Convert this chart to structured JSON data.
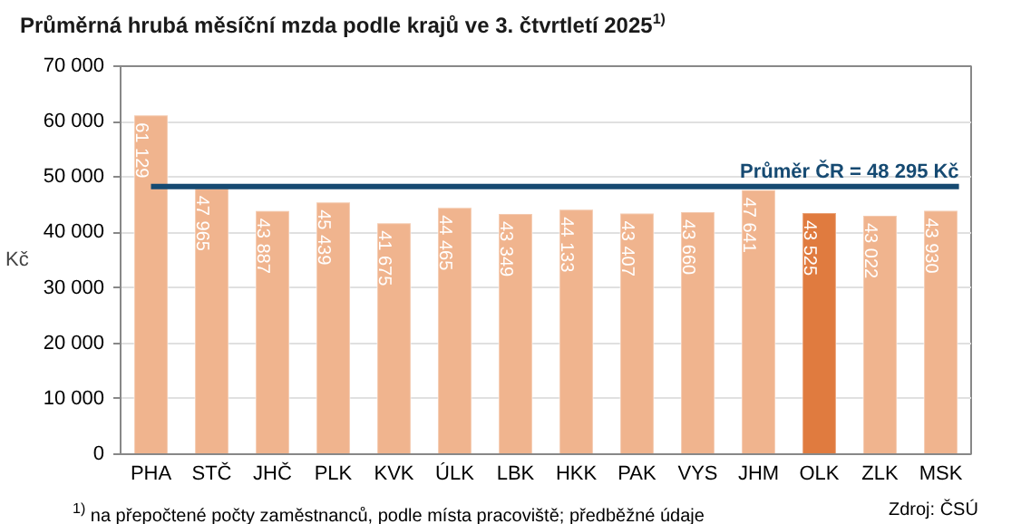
{
  "chart_data": {
    "type": "bar",
    "title": "Průměrná hrubá měsíční mzda podle krajů ve 3. čtvrtletí 2025$^{1)}$",
    "ylabel": "Kč",
    "categories": [
      "PHA",
      "STČ",
      "JHČ",
      "PLK",
      "KVK",
      "ÚLK",
      "LBK",
      "HKK",
      "PAK",
      "VYS",
      "JHM",
      "OLK",
      "ZLK",
      "MSK"
    ],
    "values": [
      61129,
      47965,
      43887,
      45439,
      41675,
      44465,
      43349,
      44133,
      43407,
      43660,
      47641,
      43525,
      43022,
      43930
    ],
    "value_labels": [
      "61 129",
      "47 965",
      "43 887",
      "45 439",
      "41 675",
      "44 465",
      "43 349",
      "44 133",
      "43 407",
      "43 660",
      "47 641",
      "43 525",
      "43 022",
      "43 930"
    ],
    "colors": [
      "#f0b48e",
      "#f0b48e",
      "#f0b48e",
      "#f0b48e",
      "#f0b48e",
      "#f0b48e",
      "#f0b48e",
      "#f0b48e",
      "#f0b48e",
      "#f0b48e",
      "#f0b48e",
      "#e07b3f",
      "#f0b48e",
      "#f0b48e"
    ],
    "ylim": [
      0,
      70000
    ],
    "yticks": [
      0,
      {
        "value": 10000,
        "label": "10 000"
      },
      {
        "value": 20000,
        "label": "20 000"
      },
      {
        "value": 30000,
        "label": "30 000"
      },
      {
        "value": 40000,
        "label": "40 000"
      },
      {
        "value": 50000,
        "label": "50 000"
      },
      {
        "value": 60000,
        "label": "60 000"
      },
      {
        "value": 70000,
        "label": "70 000"
      }
    ],
    "ref_lines": [
      {
        "axis": "y",
        "value": 48295,
        "label": "Průměr ČR = 48 295 Kč",
        "color": "#164a72"
      }
    ],
    "grid": "y",
    "annotations": [
      "$^{1)}$ na přepočtené počty zaměstnanců, podle místa pracoviště; předběžné údaje",
      "Zdroj: ČSÚ"
    ]
  }
}
